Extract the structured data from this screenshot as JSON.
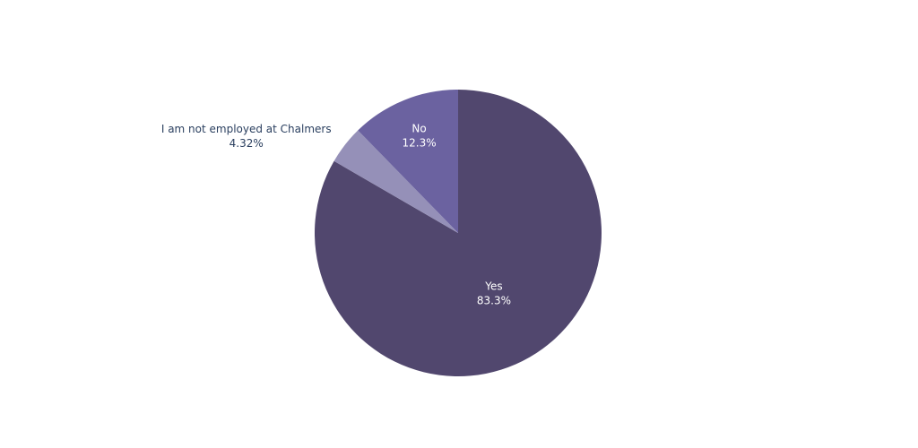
{
  "chart_data": {
    "type": "pie",
    "categories": [
      "Yes",
      "I am not employed at Chalmers",
      "No"
    ],
    "values": [
      83.3,
      4.32,
      12.3
    ],
    "value_labels": [
      "83.3%",
      "4.32%",
      "12.3%"
    ],
    "colors": [
      "#51476e",
      "#9590b8",
      "#6b62a0"
    ],
    "direction": "clockwise"
  }
}
